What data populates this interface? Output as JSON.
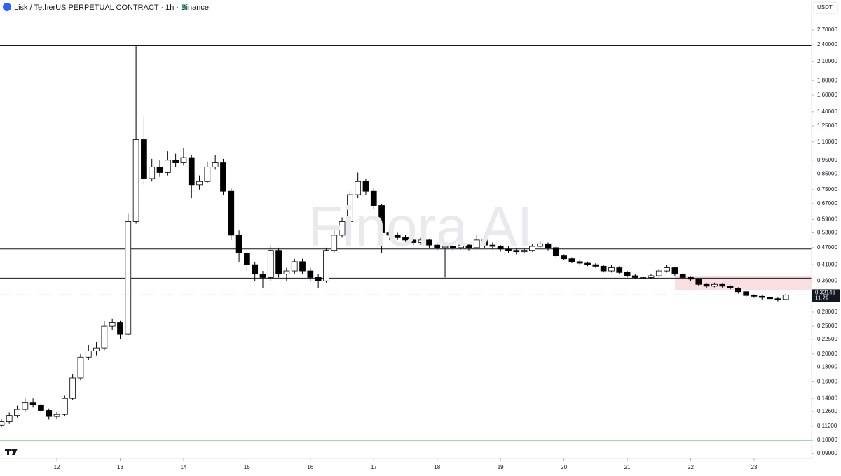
{
  "chart_data": {
    "type": "candlestick",
    "title": "Lisk / TetherUS PERPETUAL CONTRACT · 1h · Binance",
    "currency": "USDT",
    "watermark": "Finora AI",
    "log_scale": true,
    "grid": false,
    "up_color": "#ffffff",
    "down_color": "#000000",
    "wick_color": "#000000",
    "xlim": [
      11.104,
      23.907
    ],
    "ylim": [
      0.0864,
      3.44
    ],
    "xticks": [
      12,
      13,
      14,
      15,
      16,
      17,
      18,
      19,
      20,
      21,
      22,
      23
    ],
    "yticks": [
      {
        "value": 2.7,
        "label": "2.70000"
      },
      {
        "value": 2.4,
        "label": "2.40000"
      },
      {
        "value": 2.1,
        "label": "2.10000"
      },
      {
        "value": 1.8,
        "label": "1.80000"
      },
      {
        "value": 1.6,
        "label": "1.60000"
      },
      {
        "value": 1.4,
        "label": "1.40000"
      },
      {
        "value": 1.25,
        "label": "1.25000"
      },
      {
        "value": 1.1,
        "label": "1.10000"
      },
      {
        "value": 0.95,
        "label": "0.95000"
      },
      {
        "value": 0.85,
        "label": "0.85000"
      },
      {
        "value": 0.75,
        "label": "0.75000"
      },
      {
        "value": 0.67,
        "label": "0.67000"
      },
      {
        "value": 0.59,
        "label": "0.59000"
      },
      {
        "value": 0.53,
        "label": "0.53000"
      },
      {
        "value": 0.47,
        "label": "0.47000"
      },
      {
        "value": 0.41,
        "label": "0.41000"
      },
      {
        "value": 0.36,
        "label": "0.36000"
      },
      {
        "value": 0.28,
        "label": "0.28000"
      },
      {
        "value": 0.25,
        "label": "0.25000"
      },
      {
        "value": 0.225,
        "label": "0.22500"
      },
      {
        "value": 0.2,
        "label": "0.20000"
      },
      {
        "value": 0.18,
        "label": "0.18000"
      },
      {
        "value": 0.16,
        "label": "0.16000"
      },
      {
        "value": 0.14,
        "label": "0.14000"
      },
      {
        "value": 0.126,
        "label": "0.12600"
      },
      {
        "value": 0.112,
        "label": "0.11200"
      },
      {
        "value": 0.1,
        "label": "0.10000"
      },
      {
        "value": 0.09,
        "label": "0.09000"
      }
    ],
    "x": [
      11.125,
      11.25,
      11.375,
      11.5,
      11.625,
      11.75,
      11.875,
      12,
      12.125,
      12.25,
      12.375,
      12.5,
      12.625,
      12.75,
      12.875,
      13,
      13.125,
      13.25,
      13.375,
      13.5,
      13.625,
      13.75,
      13.875,
      14,
      14.125,
      14.25,
      14.375,
      14.5,
      14.625,
      14.75,
      14.875,
      15,
      15.125,
      15.25,
      15.375,
      15.5,
      15.625,
      15.75,
      15.875,
      16,
      16.125,
      16.25,
      16.375,
      16.5,
      16.625,
      16.75,
      16.875,
      17,
      17.125,
      17.25,
      17.375,
      17.5,
      17.625,
      17.75,
      17.875,
      18,
      18.125,
      18.25,
      18.375,
      18.5,
      18.625,
      18.75,
      18.875,
      19,
      19.125,
      19.25,
      19.375,
      19.5,
      19.625,
      19.75,
      19.875,
      20,
      20.125,
      20.25,
      20.375,
      20.5,
      20.625,
      20.75,
      20.875,
      21,
      21.125,
      21.25,
      21.375,
      21.5,
      21.625,
      21.75,
      21.875,
      22,
      22.125,
      22.25,
      22.375,
      22.5,
      22.625,
      22.75,
      22.875,
      23,
      23.125,
      23.25,
      23.375,
      23.5
    ],
    "open": [
      0.113,
      0.116,
      0.122,
      0.128,
      0.135,
      0.133,
      0.127,
      0.121,
      0.123,
      0.14,
      0.165,
      0.195,
      0.205,
      0.21,
      0.25,
      0.258,
      0.235,
      0.58,
      1.12,
      0.82,
      0.9,
      0.86,
      0.95,
      0.93,
      0.97,
      0.78,
      0.8,
      0.9,
      0.93,
      0.74,
      0.52,
      0.45,
      0.41,
      0.38,
      0.37,
      0.46,
      0.38,
      0.39,
      0.42,
      0.39,
      0.37,
      0.36,
      0.46,
      0.52,
      0.58,
      0.72,
      0.8,
      0.74,
      0.66,
      0.53,
      0.52,
      0.51,
      0.5,
      0.49,
      0.5,
      0.48,
      0.47,
      0.475,
      0.47,
      0.48,
      0.47,
      0.5,
      0.48,
      0.475,
      0.465,
      0.46,
      0.455,
      0.46,
      0.475,
      0.485,
      0.47,
      0.44,
      0.43,
      0.42,
      0.415,
      0.41,
      0.405,
      0.39,
      0.4,
      0.385,
      0.375,
      0.37,
      0.37,
      0.375,
      0.39,
      0.4,
      0.38,
      0.37,
      0.365,
      0.35,
      0.345,
      0.35,
      0.345,
      0.34,
      0.33,
      0.32,
      0.318,
      0.315,
      0.312,
      0.31
    ],
    "high": [
      0.119,
      0.125,
      0.132,
      0.14,
      0.14,
      0.135,
      0.129,
      0.126,
      0.143,
      0.17,
      0.2,
      0.215,
      0.22,
      0.26,
      0.265,
      0.262,
      0.62,
      2.38,
      1.35,
      0.96,
      0.95,
      1.02,
      1.0,
      1.05,
      0.99,
      0.84,
      0.94,
      0.99,
      0.96,
      0.76,
      0.54,
      0.46,
      0.42,
      0.39,
      0.48,
      0.47,
      0.4,
      0.43,
      0.43,
      0.4,
      0.38,
      0.47,
      0.54,
      0.6,
      0.74,
      0.86,
      0.82,
      0.76,
      0.67,
      0.55,
      0.53,
      0.52,
      0.51,
      0.51,
      0.505,
      0.49,
      0.485,
      0.48,
      0.49,
      0.485,
      0.52,
      0.505,
      0.49,
      0.48,
      0.475,
      0.47,
      0.47,
      0.485,
      0.495,
      0.49,
      0.475,
      0.445,
      0.435,
      0.425,
      0.42,
      0.415,
      0.41,
      0.41,
      0.405,
      0.39,
      0.38,
      0.375,
      0.38,
      0.395,
      0.41,
      0.402,
      0.383,
      0.372,
      0.368,
      0.352,
      0.355,
      0.352,
      0.348,
      0.342,
      0.332,
      0.323,
      0.32,
      0.318,
      0.315,
      0.324
    ],
    "low": [
      0.111,
      0.114,
      0.12,
      0.126,
      0.13,
      0.124,
      0.118,
      0.119,
      0.121,
      0.138,
      0.162,
      0.19,
      0.198,
      0.206,
      0.243,
      0.225,
      0.232,
      0.57,
      0.78,
      0.8,
      0.83,
      0.84,
      0.9,
      0.91,
      0.7,
      0.75,
      0.79,
      0.88,
      0.72,
      0.5,
      0.42,
      0.39,
      0.36,
      0.34,
      0.36,
      0.37,
      0.36,
      0.38,
      0.38,
      0.36,
      0.34,
      0.355,
      0.45,
      0.51,
      0.57,
      0.7,
      0.72,
      0.64,
      0.45,
      0.5,
      0.5,
      0.49,
      0.48,
      0.48,
      0.47,
      0.46,
      0.37,
      0.46,
      0.465,
      0.46,
      0.465,
      0.47,
      0.465,
      0.455,
      0.45,
      0.445,
      0.45,
      0.455,
      0.47,
      0.46,
      0.435,
      0.425,
      0.415,
      0.41,
      0.405,
      0.4,
      0.385,
      0.385,
      0.38,
      0.37,
      0.365,
      0.365,
      0.366,
      0.372,
      0.385,
      0.375,
      0.366,
      0.36,
      0.345,
      0.34,
      0.342,
      0.34,
      0.336,
      0.325,
      0.315,
      0.314,
      0.31,
      0.307,
      0.305,
      0.308
    ],
    "close": [
      0.116,
      0.122,
      0.128,
      0.135,
      0.133,
      0.127,
      0.121,
      0.123,
      0.14,
      0.165,
      0.195,
      0.205,
      0.21,
      0.25,
      0.258,
      0.235,
      0.58,
      1.12,
      0.82,
      0.9,
      0.86,
      0.95,
      0.93,
      0.97,
      0.78,
      0.8,
      0.9,
      0.93,
      0.74,
      0.52,
      0.45,
      0.41,
      0.38,
      0.37,
      0.46,
      0.38,
      0.39,
      0.42,
      0.39,
      0.37,
      0.36,
      0.46,
      0.52,
      0.58,
      0.72,
      0.8,
      0.74,
      0.66,
      0.53,
      0.52,
      0.51,
      0.5,
      0.49,
      0.5,
      0.48,
      0.47,
      0.475,
      0.47,
      0.48,
      0.47,
      0.5,
      0.48,
      0.475,
      0.465,
      0.46,
      0.455,
      0.46,
      0.475,
      0.485,
      0.47,
      0.44,
      0.43,
      0.42,
      0.415,
      0.41,
      0.405,
      0.39,
      0.4,
      0.385,
      0.375,
      0.37,
      0.37,
      0.375,
      0.39,
      0.4,
      0.38,
      0.37,
      0.365,
      0.35,
      0.345,
      0.35,
      0.345,
      0.34,
      0.33,
      0.32,
      0.318,
      0.315,
      0.312,
      0.31,
      0.321
    ],
    "hlines": [
      {
        "value": 2.38,
        "color": "#131722"
      },
      {
        "value": 0.465,
        "color": "#131722"
      },
      {
        "value": 0.368,
        "color": "#131722"
      },
      {
        "value": 0.1,
        "color": "#4caf50"
      }
    ],
    "zone": {
      "x": [
        21.75,
        23.907
      ],
      "y": [
        0.335,
        0.375
      ],
      "color": "#f8d7da"
    },
    "last_price": 0.32146,
    "countdown": "11:29"
  }
}
